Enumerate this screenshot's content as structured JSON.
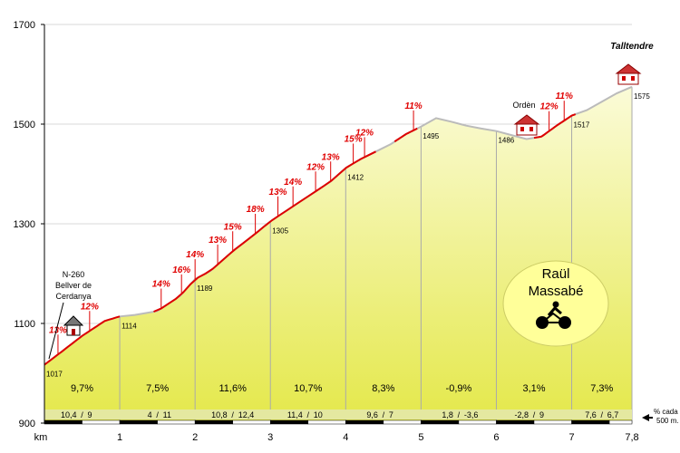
{
  "chart_data": {
    "type": "area",
    "title": "",
    "xlabel": "km",
    "ylabel": "",
    "xlim": [
      0,
      7.8
    ],
    "ylim": [
      900,
      1700
    ],
    "y_ticks": [
      "1700",
      "1500",
      "1300",
      "1100",
      "900"
    ],
    "y_tick_values": [
      1700,
      1500,
      1300,
      1100,
      900
    ],
    "x_ticks": [
      "1",
      "2",
      "3",
      "4",
      "5",
      "6",
      "7",
      "7,8"
    ],
    "x_tick_values": [
      1,
      2,
      3,
      4,
      5,
      6,
      7,
      7.8
    ],
    "profile": [
      [
        0,
        1017
      ],
      [
        0.2,
        1040
      ],
      [
        0.5,
        1075
      ],
      [
        0.8,
        1105
      ],
      [
        1.0,
        1114
      ],
      [
        1.2,
        1117
      ],
      [
        1.5,
        1125
      ],
      [
        1.8,
        1155
      ],
      [
        2.0,
        1189
      ],
      [
        2.2,
        1205
      ],
      [
        2.5,
        1245
      ],
      [
        2.8,
        1280
      ],
      [
        3.0,
        1305
      ],
      [
        3.2,
        1325
      ],
      [
        3.5,
        1355
      ],
      [
        3.8,
        1385
      ],
      [
        4.0,
        1412
      ],
      [
        4.2,
        1430
      ],
      [
        4.4,
        1445
      ],
      [
        4.6,
        1460
      ],
      [
        4.8,
        1480
      ],
      [
        5.0,
        1495
      ],
      [
        5.2,
        1512
      ],
      [
        5.4,
        1505
      ],
      [
        5.6,
        1497
      ],
      [
        5.8,
        1491
      ],
      [
        6.0,
        1486
      ],
      [
        6.2,
        1478
      ],
      [
        6.4,
        1470
      ],
      [
        6.6,
        1475
      ],
      [
        6.8,
        1497
      ],
      [
        7.0,
        1517
      ],
      [
        7.2,
        1528
      ],
      [
        7.4,
        1545
      ],
      [
        7.6,
        1562
      ],
      [
        7.8,
        1575
      ]
    ],
    "red_segments": [
      [
        0,
        1.0
      ],
      [
        1.45,
        4.4
      ],
      [
        4.65,
        4.95
      ],
      [
        6.5,
        7.05
      ]
    ],
    "point_labels": [
      {
        "x": 0,
        "y": 1017,
        "text": "1017"
      },
      {
        "x": 1,
        "y": 1114,
        "text": "1114"
      },
      {
        "x": 2,
        "y": 1189,
        "text": "1189"
      },
      {
        "x": 3,
        "y": 1305,
        "text": "1305"
      },
      {
        "x": 4,
        "y": 1412,
        "text": "1412"
      },
      {
        "x": 5,
        "y": 1495,
        "text": "1495"
      },
      {
        "x": 6,
        "y": 1486,
        "text": "1486"
      },
      {
        "x": 7,
        "y": 1517,
        "text": "1517"
      },
      {
        "x": 7.8,
        "y": 1575,
        "text": "1575"
      }
    ],
    "gradient_markers": [
      {
        "x": 0.18,
        "label": "13%"
      },
      {
        "x": 0.6,
        "label": "12%"
      },
      {
        "x": 1.55,
        "label": "14%"
      },
      {
        "x": 1.82,
        "label": "16%"
      },
      {
        "x": 2.0,
        "label": "14%"
      },
      {
        "x": 2.3,
        "label": "13%"
      },
      {
        "x": 2.5,
        "label": "15%"
      },
      {
        "x": 2.8,
        "label": "18%"
      },
      {
        "x": 3.1,
        "label": "13%"
      },
      {
        "x": 3.3,
        "label": "14%"
      },
      {
        "x": 3.6,
        "label": "12%"
      },
      {
        "x": 3.8,
        "label": "13%"
      },
      {
        "x": 4.1,
        "label": "15%"
      },
      {
        "x": 4.25,
        "label": "12%"
      },
      {
        "x": 4.9,
        "label": "11%"
      },
      {
        "x": 6.7,
        "label": "12%"
      },
      {
        "x": 6.9,
        "label": "11%"
      }
    ],
    "segments": [
      {
        "avg": "9,7%",
        "max": "10,4",
        "min": "9"
      },
      {
        "avg": "7,5%",
        "max": "4",
        "min": "11"
      },
      {
        "avg": "11,6%",
        "max": "10,8",
        "min": "12,4"
      },
      {
        "avg": "10,7%",
        "max": "11,4",
        "min": "10"
      },
      {
        "avg": "8,3%",
        "max": "9,6",
        "min": "7"
      },
      {
        "avg": "-0,9%",
        "max": "1,8",
        "min": "-3,6"
      },
      {
        "avg": "3,1%",
        "max": "-2,8",
        "min": "9"
      },
      {
        "avg": "7,3%",
        "max": "7,6",
        "min": "6,7"
      }
    ],
    "annotations": {
      "start_road": [
        "N-260",
        "Bellver de",
        "Cerdanya"
      ],
      "orden": "Ordèn",
      "destination": "Talltendre",
      "author": [
        "Raül",
        "Massabé"
      ],
      "legend": [
        "% cada",
        "500 m."
      ]
    },
    "colors": {
      "fill_top": "#fbfbd8",
      "fill_bottom": "#e8e840",
      "profile_line": "#dd0000",
      "band": "#e4e8a0",
      "author_bubble": "#ffff99"
    }
  }
}
